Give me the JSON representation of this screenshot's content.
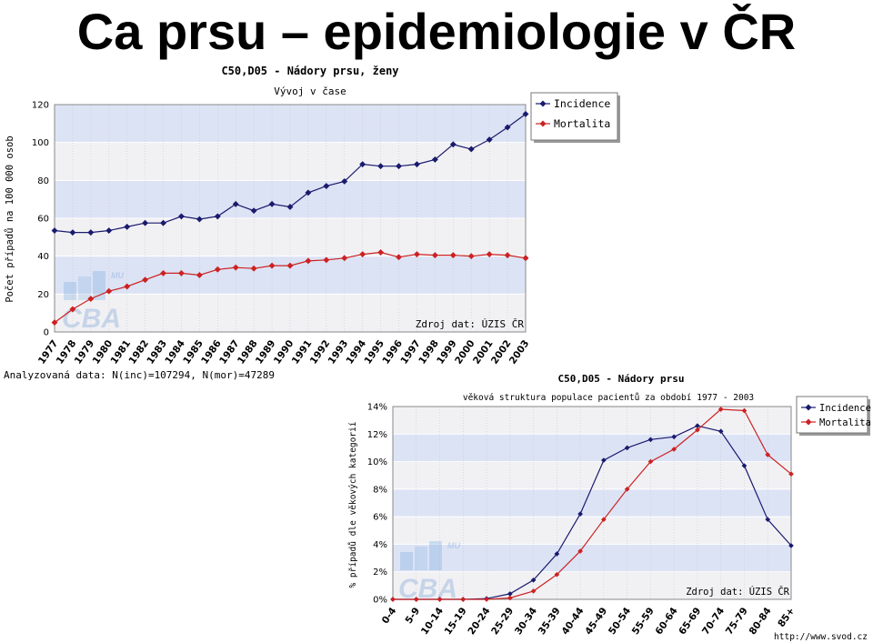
{
  "slide": {
    "title": "Ca prsu – epidemiologie v ČR"
  },
  "footer_url": "http://www.svod.cz",
  "colors": {
    "incidence": "#1a1a6e",
    "mortalita": "#cc2222",
    "band": "#dce3f5",
    "band_alt": "#f1f1f4"
  },
  "chart_data": [
    {
      "type": "line",
      "title": "C50,D05 - Nádory prsu, ženy",
      "subtitle": "Vývoj v čase",
      "ylabel": "Počet případů na 100 000 osob",
      "xlabel": "",
      "ylim": [
        0,
        120
      ],
      "yticks": [
        0,
        20,
        40,
        60,
        80,
        100,
        120
      ],
      "grid": true,
      "legend": "top-right",
      "x": [
        "1977",
        "1978",
        "1979",
        "1980",
        "1981",
        "1982",
        "1983",
        "1984",
        "1985",
        "1986",
        "1987",
        "1988",
        "1989",
        "1990",
        "1991",
        "1992",
        "1993",
        "1994",
        "1995",
        "1996",
        "1997",
        "1998",
        "1999",
        "2000",
        "2001",
        "2002",
        "2003"
      ],
      "series": [
        {
          "name": "Incidence",
          "values": [
            53.5,
            52.5,
            52.5,
            53.5,
            55.5,
            57.5,
            57.5,
            61,
            59.5,
            61,
            67.5,
            64,
            67.5,
            66,
            73.5,
            77,
            79.5,
            88.5,
            87.5,
            87.5,
            88.5,
            91,
            99,
            96.5,
            101.5,
            108,
            115
          ]
        },
        {
          "name": "Mortalita",
          "values": [
            5,
            12,
            17.5,
            21.5,
            24,
            27.5,
            31,
            31,
            30,
            33,
            34,
            33.5,
            35,
            35,
            37.5,
            38,
            39,
            41,
            42,
            39.5,
            41,
            40.5,
            40.5,
            40,
            41,
            40.5,
            39
          ]
        }
      ],
      "source_note": "Zdroj dat: ÚZIS ČR",
      "footnote": "Analyzovaná data: N(inc)=107294, N(mor)=47289",
      "watermark": "CBA",
      "watermark_small": "MU"
    },
    {
      "type": "line",
      "title": "C50,D05 - Nádory prsu",
      "subtitle": "věková struktura populace pacientů za období 1977 - 2003",
      "ylabel": "% případů dle věkových kategorií",
      "xlabel": "",
      "ylim": [
        0,
        14
      ],
      "yticks": [
        "0%",
        "2%",
        "4%",
        "6%",
        "8%",
        "10%",
        "12%",
        "14%"
      ],
      "grid": true,
      "legend": "top-right",
      "categories": [
        "0-4",
        "5-9",
        "10-14",
        "15-19",
        "20-24",
        "25-29",
        "30-34",
        "35-39",
        "40-44",
        "45-49",
        "50-54",
        "55-59",
        "60-64",
        "65-69",
        "70-74",
        "75-79",
        "80-84",
        "85+"
      ],
      "series": [
        {
          "name": "Incidence",
          "values": [
            0,
            0,
            0,
            0,
            0.05,
            0.4,
            1.4,
            3.3,
            6.2,
            10.1,
            11,
            11.6,
            11.8,
            12.6,
            12.2,
            9.7,
            5.8,
            3.9
          ]
        },
        {
          "name": "Mortalita",
          "values": [
            0,
            0,
            0,
            0,
            0,
            0.1,
            0.6,
            1.8,
            3.5,
            5.8,
            8,
            10,
            10.9,
            12.3,
            13.8,
            13.7,
            10.5,
            9.1
          ]
        }
      ],
      "source_note": "Zdroj dat: ÚZIS ČR",
      "watermark": "CBA",
      "watermark_small": "MU"
    }
  ]
}
